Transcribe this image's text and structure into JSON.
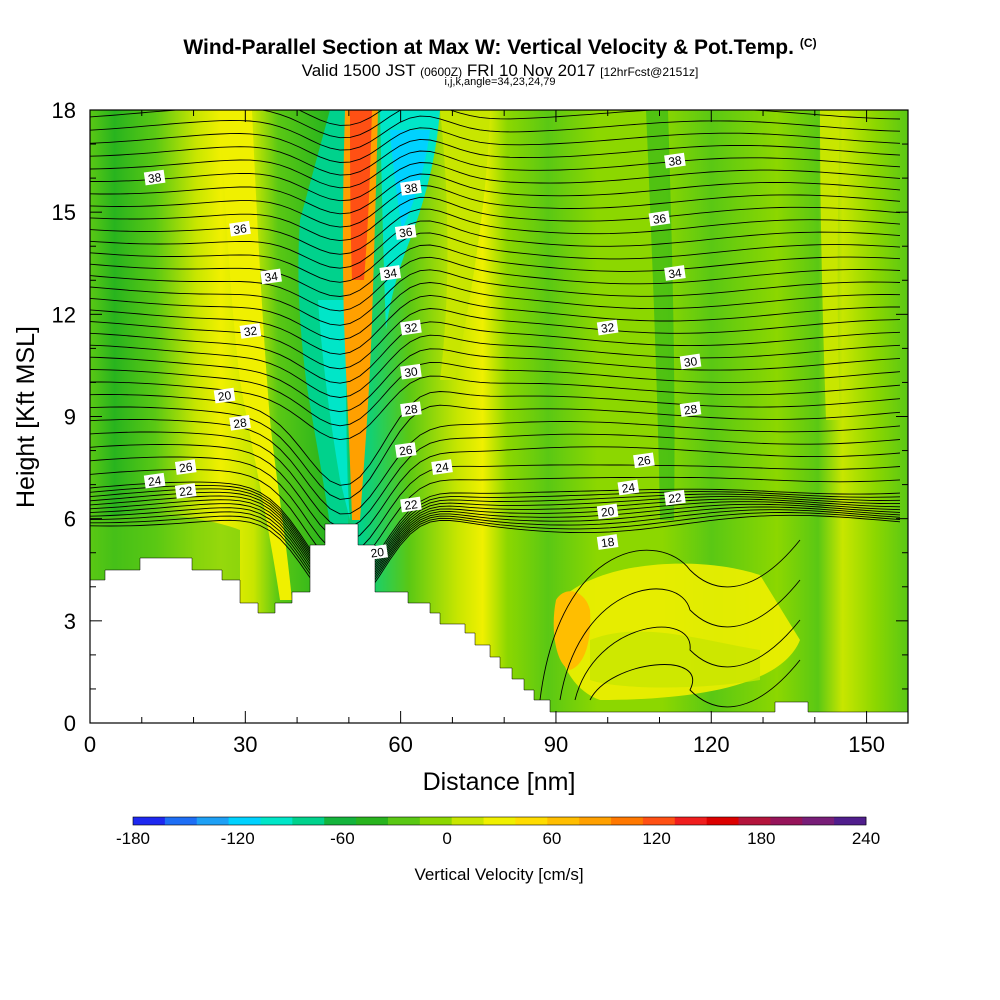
{
  "title": "Wind-Parallel Section at Max W: Vertical Velocity & Pot.Temp.",
  "title_tag": "(C)",
  "subtitle_main": "Valid 1500 JST",
  "subtitle_z": "(0600Z)",
  "subtitle_date": "FRI 10 Nov 2017",
  "subtitle_fcst": "[12hrFcst@2151z]",
  "subtitle_idx": "i,j,k,angle=34,23,24,79",
  "chart_data": {
    "type": "heatmap",
    "xlabel": "Distance [nm]",
    "ylabel": "Height [Kft MSL]",
    "xlim": [
      0,
      158
    ],
    "ylim": [
      0,
      18
    ],
    "x_ticks": [
      0,
      30,
      60,
      90,
      120,
      150
    ],
    "y_ticks": [
      0,
      3,
      6,
      9,
      12,
      15,
      18
    ],
    "grid": false,
    "colorbar": {
      "title": "Vertical Velocity [cm/s]",
      "tick_labels": [
        "-180",
        "-120",
        "-60",
        "0",
        "60",
        "120",
        "180",
        "240"
      ],
      "tick_values": [
        -180,
        -120,
        -60,
        0,
        60,
        120,
        180,
        240
      ],
      "colors": [
        "#1e28f0",
        "#1e6ef5",
        "#1ea0f5",
        "#00d2ff",
        "#00e6c8",
        "#00d28c",
        "#14b43c",
        "#28b41e",
        "#5ac814",
        "#8cd700",
        "#c8e600",
        "#f0f000",
        "#ffdc00",
        "#ffbe00",
        "#ffa000",
        "#ff7800",
        "#ff5014",
        "#f01e1e",
        "#dc0000",
        "#b4143c",
        "#96145a",
        "#781e78",
        "#501e8c"
      ]
    },
    "theta_contour_labels": [
      {
        "label": "38",
        "x": 12.5,
        "y": 16.0
      },
      {
        "label": "36",
        "x": 29,
        "y": 14.5
      },
      {
        "label": "34",
        "x": 35,
        "y": 13.1
      },
      {
        "label": "32",
        "x": 31,
        "y": 11.5
      },
      {
        "label": "20",
        "x": 26,
        "y": 9.6
      },
      {
        "label": "28",
        "x": 29,
        "y": 8.8
      },
      {
        "label": "26",
        "x": 18.5,
        "y": 7.5
      },
      {
        "label": "24",
        "x": 12.5,
        "y": 7.1
      },
      {
        "label": "22",
        "x": 18.5,
        "y": 6.8
      },
      {
        "label": "38",
        "x": 62,
        "y": 15.7
      },
      {
        "label": "36",
        "x": 61,
        "y": 14.4
      },
      {
        "label": "34",
        "x": 58,
        "y": 13.2
      },
      {
        "label": "32",
        "x": 62,
        "y": 11.6
      },
      {
        "label": "30",
        "x": 62,
        "y": 10.3
      },
      {
        "label": "28",
        "x": 62,
        "y": 9.2
      },
      {
        "label": "26",
        "x": 61,
        "y": 8.0
      },
      {
        "label": "24",
        "x": 68,
        "y": 7.5
      },
      {
        "label": "22",
        "x": 62,
        "y": 6.4
      },
      {
        "label": "20",
        "x": 55.5,
        "y": 5.0
      },
      {
        "label": "38",
        "x": 113,
        "y": 16.5
      },
      {
        "label": "36",
        "x": 110,
        "y": 14.8
      },
      {
        "label": "34",
        "x": 113,
        "y": 13.2
      },
      {
        "label": "32",
        "x": 100,
        "y": 11.6
      },
      {
        "label": "30",
        "x": 116,
        "y": 10.6
      },
      {
        "label": "28",
        "x": 116,
        "y": 9.2
      },
      {
        "label": "26",
        "x": 107,
        "y": 7.7
      },
      {
        "label": "24",
        "x": 104,
        "y": 6.9
      },
      {
        "label": "22",
        "x": 113,
        "y": 6.6
      },
      {
        "label": "20",
        "x": 100,
        "y": 6.2
      },
      {
        "label": "18",
        "x": 100,
        "y": 5.3
      }
    ]
  }
}
